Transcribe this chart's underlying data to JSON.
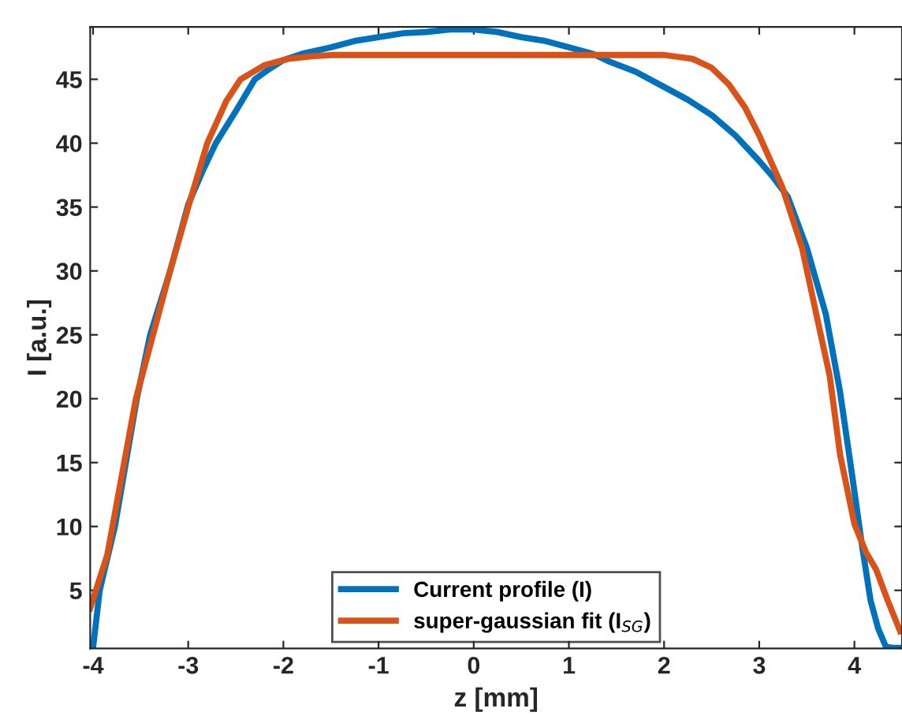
{
  "chart_data": {
    "type": "line",
    "xlabel": "z [mm]",
    "ylabel": "I [a.u.]",
    "xlim": [
      -4.03,
      4.5
    ],
    "ylim": [
      0.45,
      49.1
    ],
    "xticks": [
      -4,
      -3,
      -2,
      -1,
      0,
      1,
      2,
      3,
      4
    ],
    "yticks": [
      5,
      10,
      15,
      20,
      25,
      30,
      35,
      40,
      45
    ],
    "grid": false,
    "legend": "bottom",
    "marker": "none",
    "line_style": "solid",
    "series": [
      {
        "name": "Current profile (I)",
        "color": "#0072bd",
        "x": [
          -4.0,
          -3.93,
          -3.77,
          -3.54,
          -3.4,
          -3.19,
          -3.0,
          -2.85,
          -2.71,
          -2.5,
          -2.3,
          -2.15,
          -2.0,
          -1.8,
          -1.5,
          -1.25,
          -1.0,
          -0.75,
          -0.5,
          -0.25,
          0.0,
          0.25,
          0.5,
          0.75,
          1.0,
          1.25,
          1.42,
          1.7,
          2.0,
          2.25,
          2.5,
          2.75,
          3.0,
          3.15,
          3.3,
          3.5,
          3.7,
          3.85,
          3.98,
          4.08,
          4.17,
          4.25,
          4.33,
          4.4,
          4.5
        ],
        "values": [
          0.5,
          5,
          10,
          20,
          25,
          30,
          35.2,
          37.8,
          40,
          42.5,
          45,
          45.8,
          46.5,
          47,
          47.5,
          48,
          48.3,
          48.6,
          48.7,
          48.9,
          48.9,
          48.7,
          48.3,
          48.0,
          47.5,
          47.0,
          46.4,
          45.6,
          44.4,
          43.4,
          42.2,
          40.6,
          38.6,
          37.3,
          35.8,
          31.8,
          26.6,
          20.5,
          13.8,
          8.5,
          4.2,
          2.0,
          0.6,
          0.5,
          0.5
        ]
      },
      {
        "name": "super-gaussian fit (I$_{SG}$)",
        "color": "#d95319",
        "x": [
          -4.03,
          -3.85,
          -3.55,
          -3.37,
          -3.19,
          -3.0,
          -2.8,
          -2.6,
          -2.45,
          -2.2,
          -1.95,
          -1.7,
          -1.5,
          -1.0,
          0.0,
          1.0,
          2.0,
          2.3,
          2.5,
          2.68,
          2.85,
          3.0,
          3.24,
          3.45,
          3.6,
          3.74,
          3.85,
          4.0,
          4.12,
          4.23,
          4.35,
          4.48
        ],
        "values": [
          3.6,
          7.8,
          20,
          25,
          30,
          35,
          40,
          43.3,
          45,
          46.1,
          46.6,
          46.8,
          46.9,
          46.9,
          46.9,
          46.9,
          46.9,
          46.6,
          45.9,
          44.6,
          42.8,
          40.6,
          36.6,
          31.8,
          26.6,
          21.8,
          15.6,
          10.2,
          8.0,
          6.6,
          4.2,
          1.8
        ]
      }
    ]
  }
}
